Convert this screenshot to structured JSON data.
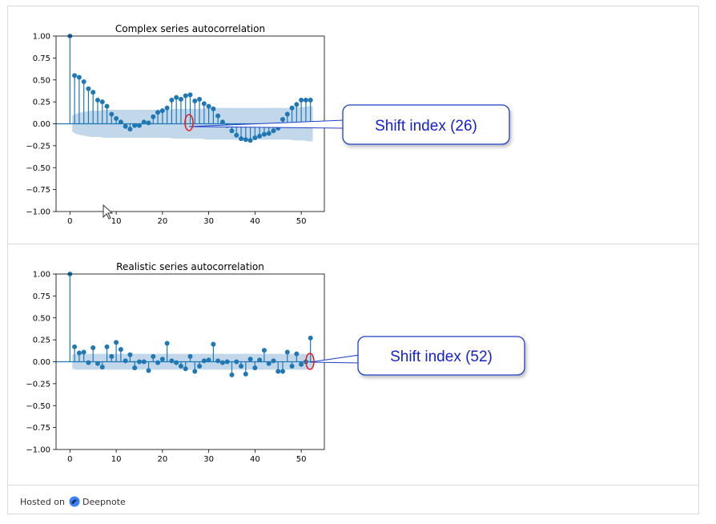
{
  "charts": [
    {
      "title": "Complex series autocorrelation",
      "type": "acf-stem",
      "xlim": [
        -3,
        55
      ],
      "ylim": [
        -1,
        1
      ],
      "xticks": [
        0,
        10,
        20,
        30,
        40,
        50
      ],
      "yticks": [
        1.0,
        0.75,
        0.5,
        0.25,
        0.0,
        -0.25,
        -0.5,
        -0.75,
        -1.0
      ],
      "ytick_labels": [
        "1.00",
        "0.75",
        "0.50",
        "0.25",
        "0.00",
        "−0.25",
        "−0.50",
        "−0.75",
        "−1.00"
      ]
    },
    {
      "title": "Realistic series autocorrelation",
      "type": "acf-stem",
      "xlim": [
        -3,
        55
      ],
      "ylim": [
        -1,
        1
      ],
      "xticks": [
        0,
        10,
        20,
        30,
        40,
        50
      ],
      "yticks": [
        1.0,
        0.75,
        0.5,
        0.25,
        0.0,
        -0.25,
        -0.5,
        -0.75,
        -1.0
      ],
      "ytick_labels": [
        "1.00",
        "0.75",
        "0.50",
        "0.25",
        "0.00",
        "−0.25",
        "−0.50",
        "−0.75",
        "−1.00"
      ]
    }
  ],
  "chart_data": [
    {
      "type": "scatter",
      "title": "Complex series autocorrelation",
      "x": [
        0,
        1,
        2,
        3,
        4,
        5,
        6,
        7,
        8,
        9,
        10,
        11,
        12,
        13,
        14,
        15,
        16,
        17,
        18,
        19,
        20,
        21,
        22,
        23,
        24,
        25,
        26,
        27,
        28,
        29,
        30,
        31,
        32,
        33,
        34,
        35,
        36,
        37,
        38,
        39,
        40,
        41,
        42,
        43,
        44,
        45,
        46,
        47,
        48,
        49,
        50,
        51,
        52
      ],
      "values": [
        1.0,
        0.55,
        0.53,
        0.48,
        0.4,
        0.36,
        0.27,
        0.25,
        0.2,
        0.11,
        0.06,
        0.02,
        -0.03,
        -0.06,
        -0.02,
        -0.02,
        0.02,
        0.01,
        0.08,
        0.13,
        0.15,
        0.18,
        0.27,
        0.3,
        0.28,
        0.32,
        0.33,
        0.26,
        0.28,
        0.23,
        0.2,
        0.17,
        0.09,
        0.02,
        -0.02,
        -0.08,
        -0.13,
        -0.17,
        -0.18,
        -0.19,
        -0.16,
        -0.14,
        -0.12,
        -0.11,
        -0.08,
        -0.05,
        0.05,
        0.11,
        0.18,
        0.22,
        0.27,
        0.27,
        0.27
      ],
      "confidence_upper": [
        0.09,
        0.12,
        0.13,
        0.14,
        0.15,
        0.15,
        0.15,
        0.16,
        0.16,
        0.16,
        0.16,
        0.16,
        0.16,
        0.16,
        0.16,
        0.16,
        0.16,
        0.16,
        0.16,
        0.16,
        0.16,
        0.16,
        0.17,
        0.17,
        0.17,
        0.17,
        0.17,
        0.17,
        0.17,
        0.18,
        0.18,
        0.18,
        0.18,
        0.18,
        0.18,
        0.18,
        0.18,
        0.18,
        0.18,
        0.18,
        0.18,
        0.18,
        0.18,
        0.18,
        0.18,
        0.18,
        0.18,
        0.18,
        0.19,
        0.19,
        0.19,
        0.2,
        0.2
      ],
      "xlim": [
        -3,
        55
      ],
      "ylim": [
        -1,
        1
      ],
      "annotation": {
        "label": "Shift index (26)",
        "x": 26,
        "y": 0.0
      }
    },
    {
      "type": "scatter",
      "title": "Realistic series autocorrelation",
      "x": [
        0,
        1,
        2,
        3,
        4,
        5,
        6,
        7,
        8,
        9,
        10,
        11,
        12,
        13,
        14,
        15,
        16,
        17,
        18,
        19,
        20,
        21,
        22,
        23,
        24,
        25,
        26,
        27,
        28,
        29,
        30,
        31,
        32,
        33,
        34,
        35,
        36,
        37,
        38,
        39,
        40,
        41,
        42,
        43,
        44,
        45,
        46,
        47,
        48,
        49,
        50,
        51,
        52
      ],
      "values": [
        1.0,
        0.17,
        0.1,
        0.11,
        -0.01,
        0.16,
        -0.02,
        -0.06,
        0.17,
        0.06,
        0.22,
        0.14,
        0.01,
        0.08,
        -0.07,
        0.0,
        0.0,
        -0.1,
        0.06,
        -0.01,
        0.03,
        0.21,
        0.01,
        -0.01,
        -0.05,
        -0.08,
        0.06,
        -0.11,
        -0.05,
        0.01,
        0.02,
        0.2,
        0.01,
        -0.01,
        0.0,
        -0.15,
        0.0,
        -0.05,
        -0.14,
        0.03,
        -0.07,
        0.02,
        0.13,
        -0.02,
        0.01,
        -0.11,
        -0.11,
        0.11,
        -0.05,
        0.09,
        -0.03,
        0.0,
        0.27
      ],
      "confidence_upper": [
        0.08,
        0.09,
        0.09,
        0.09,
        0.09,
        0.09,
        0.09,
        0.09,
        0.09,
        0.09,
        0.09,
        0.09,
        0.09,
        0.09,
        0.09,
        0.09,
        0.09,
        0.09,
        0.09,
        0.09,
        0.09,
        0.09,
        0.09,
        0.09,
        0.09,
        0.09,
        0.09,
        0.09,
        0.09,
        0.09,
        0.09,
        0.09,
        0.09,
        0.09,
        0.09,
        0.09,
        0.09,
        0.09,
        0.09,
        0.09,
        0.09,
        0.09,
        0.09,
        0.09,
        0.09,
        0.09,
        0.09,
        0.09,
        0.09,
        0.09,
        0.09,
        0.09,
        0.09
      ],
      "xlim": [
        -3,
        55
      ],
      "ylim": [
        -1,
        1
      ],
      "annotation": {
        "label": "Shift index (52)",
        "x": 52,
        "y": 0.0
      }
    }
  ],
  "colors": {
    "stem": "#1f77b4",
    "band": "#aecbe3",
    "callout_border": "#1c3fc8",
    "callout_text": "#1522c8",
    "highlight": "#e02020"
  },
  "footer": {
    "prefix": "Hosted on",
    "brand": "Deepnote"
  }
}
